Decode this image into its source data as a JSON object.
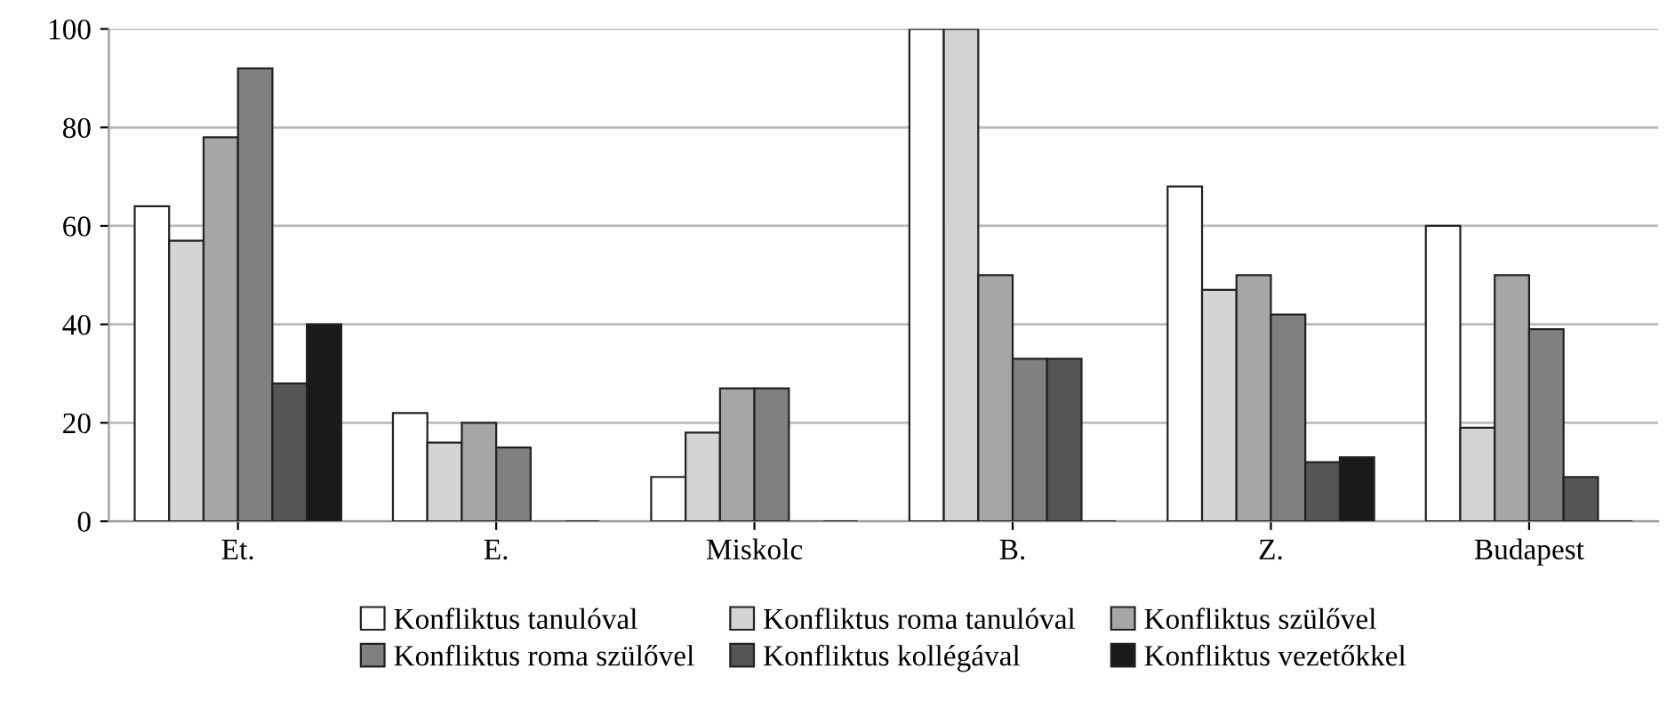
{
  "chart_data": {
    "type": "bar",
    "categories": [
      "Et.",
      "E.",
      "Miskolc",
      "B.",
      "Z.",
      "Budapest"
    ],
    "series": [
      {
        "name": "Konfliktus tanulóval",
        "color": "#ffffff",
        "values": [
          64,
          22,
          9,
          100,
          68,
          60
        ]
      },
      {
        "name": "Konfliktus roma tanulóval",
        "color": "#d4d4d4",
        "values": [
          57,
          16,
          18,
          100,
          47,
          19
        ]
      },
      {
        "name": "Konfliktus szülővel",
        "color": "#a6a6a6",
        "values": [
          78,
          20,
          27,
          50,
          50,
          50
        ]
      },
      {
        "name": "Konfliktus roma szülővel",
        "color": "#808080",
        "values": [
          92,
          15,
          27,
          33,
          42,
          39
        ]
      },
      {
        "name": "Konfliktus kollégával",
        "color": "#555555",
        "values": [
          28,
          0,
          0,
          33,
          12,
          9
        ]
      },
      {
        "name": "Konfliktus vezetőkkel",
        "color": "#1a1a1a",
        "values": [
          40,
          0,
          0,
          0,
          13,
          0
        ]
      }
    ],
    "ylim": [
      0,
      100
    ],
    "yticks": [
      0,
      20,
      40,
      60,
      80,
      100
    ],
    "grid": "y",
    "legend": "bottom"
  }
}
